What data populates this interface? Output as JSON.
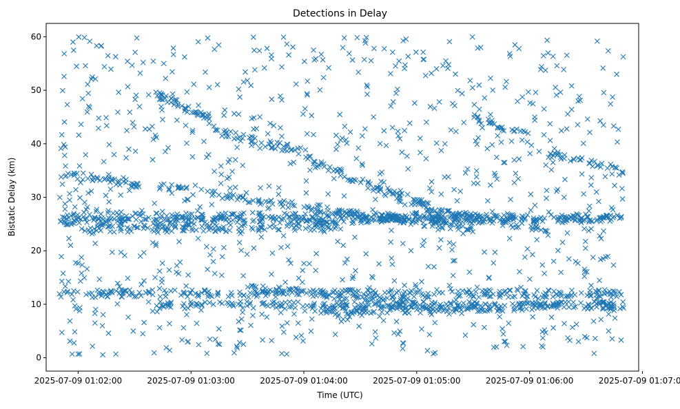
{
  "chart_data": {
    "type": "scatter",
    "title": "Detections in Delay",
    "xlabel": "Time (UTC)",
    "ylabel": "Bistatic Delay (km)",
    "marker": "x",
    "color": "#1f77b4",
    "grid": false,
    "legend": "none",
    "xlim": [
      "2025-07-09 01:01:43",
      "2025-07-09 01:06:58"
    ],
    "ylim": [
      -2.5,
      62.5
    ],
    "xticks": [
      "2025-07-09 01:02:00",
      "2025-07-09 01:03:00",
      "2025-07-09 01:04:00",
      "2025-07-09 01:05:00",
      "2025-07-09 01:06:00",
      "2025-07-09 01:07:00"
    ],
    "yticks": [
      0,
      10,
      20,
      30,
      40,
      50,
      60
    ],
    "time_start": "2025-07-09 01:01:50",
    "time_end": "2025-07-09 01:06:50",
    "tracks": [
      {
        "x": [
          "2025-07-09 01:01:50",
          "2025-07-09 01:06:50"
        ],
        "y": [
          26.5,
          26.2
        ]
      },
      {
        "x": [
          "2025-07-09 01:01:50",
          "2025-07-09 01:06:50"
        ],
        "y": [
          25.5,
          26.0
        ]
      },
      {
        "x": [
          "2025-07-09 01:01:50",
          "2025-07-09 01:05:30"
        ],
        "y": [
          34.5,
          24.0
        ]
      },
      {
        "x": [
          "2025-07-09 01:02:52",
          "2025-07-09 01:03:10"
        ],
        "y": [
          47.0,
          45.3
        ]
      },
      {
        "x": [
          "2025-07-09 01:02:40",
          "2025-07-09 01:03:10"
        ],
        "y": [
          49.5,
          45.0
        ]
      },
      {
        "x": [
          "2025-07-09 01:03:10",
          "2025-07-09 01:04:00"
        ],
        "y": [
          42.5,
          38.5
        ]
      },
      {
        "x": [
          "2025-07-09 01:04:00",
          "2025-07-09 01:05:10"
        ],
        "y": [
          37.5,
          27.0
        ]
      },
      {
        "x": [
          "2025-07-09 01:04:40",
          "2025-07-09 01:05:20"
        ],
        "y": [
          32.0,
          26.5
        ]
      },
      {
        "x": [
          "2025-07-09 01:05:30",
          "2025-07-09 01:06:00"
        ],
        "y": [
          45.0,
          41.5
        ]
      },
      {
        "x": [
          "2025-07-09 01:06:10",
          "2025-07-09 01:06:50"
        ],
        "y": [
          38.0,
          35.0
        ]
      },
      {
        "x": [
          "2025-07-09 01:01:50",
          "2025-07-09 01:06:50"
        ],
        "y": [
          12.0,
          12.0
        ]
      },
      {
        "x": [
          "2025-07-09 01:02:40",
          "2025-07-09 01:06:50"
        ],
        "y": [
          9.8,
          9.8
        ]
      },
      {
        "x": [
          "2025-07-09 01:03:30",
          "2025-07-09 01:05:00"
        ],
        "y": [
          13.0,
          10.5
        ]
      },
      {
        "x": [
          "2025-07-09 01:04:00",
          "2025-07-09 01:06:50"
        ],
        "y": [
          8.5,
          10.0
        ]
      },
      {
        "x": [
          "2025-07-09 01:05:20",
          "2025-07-09 01:06:10"
        ],
        "y": [
          27.0,
          23.5
        ]
      },
      {
        "x": [
          "2025-07-09 01:02:00",
          "2025-07-09 01:04:20"
        ],
        "y": [
          24.0,
          24.5
        ]
      }
    ],
    "noise_count": 900,
    "y_range_noise": [
      0.5,
      60
    ]
  }
}
